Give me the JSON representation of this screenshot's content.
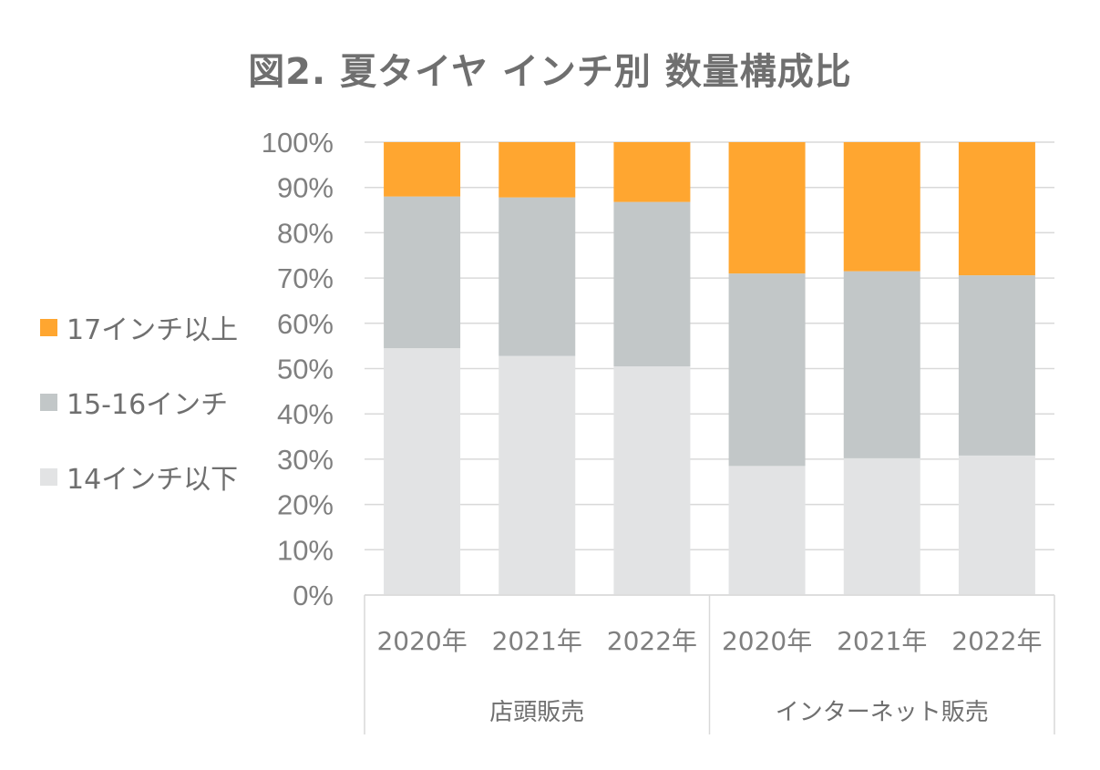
{
  "title": "図2. 夏タイヤ インチ別 数量構成比",
  "chart_data": {
    "type": "bar",
    "stacked": true,
    "title": "図2. 夏タイヤ インチ別 数量構成比",
    "categories": [
      "2020年",
      "2021年",
      "2022年",
      "2020年",
      "2021年",
      "2022年"
    ],
    "groups": [
      {
        "label": "店頭販売",
        "categories": [
          "2020年",
          "2021年",
          "2022年"
        ]
      },
      {
        "label": "インターネット販売",
        "categories": [
          "2020年",
          "2021年",
          "2022年"
        ]
      }
    ],
    "series": [
      {
        "name": "14インチ以下",
        "color": "#e2e3e4",
        "values": [
          54.5,
          52.8,
          50.5,
          28.5,
          30.2,
          30.8
        ]
      },
      {
        "name": "15-16インチ",
        "color": "#c2c7c8",
        "values": [
          33.5,
          35.0,
          36.3,
          42.5,
          41.3,
          39.8
        ]
      },
      {
        "name": "17インチ以上",
        "color": "#ffa630",
        "values": [
          12.0,
          12.2,
          13.2,
          29.0,
          28.5,
          29.4
        ]
      }
    ],
    "yticks": [
      "0%",
      "10%",
      "20%",
      "30%",
      "40%",
      "50%",
      "60%",
      "70%",
      "80%",
      "90%",
      "100%"
    ],
    "ylim": [
      0,
      100
    ],
    "grid": true,
    "legend_position": "left"
  },
  "legend": [
    {
      "name": "17インチ以上",
      "color": "#ffa630"
    },
    {
      "name": "15-16インチ",
      "color": "#c2c7c8"
    },
    {
      "name": "14インチ以下",
      "color": "#e2e3e4"
    }
  ]
}
